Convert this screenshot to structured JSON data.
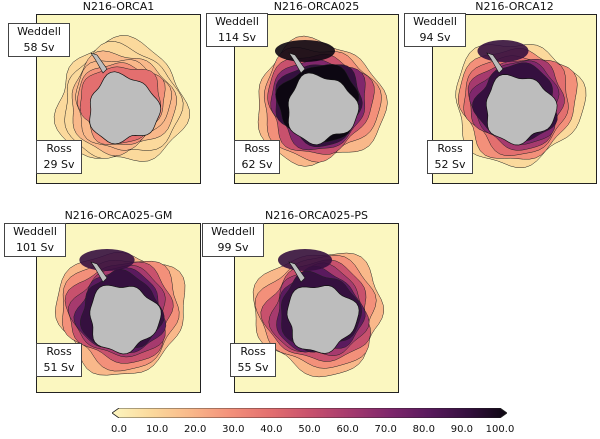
{
  "panels": [
    {
      "id": "orca1",
      "title": "N216-ORCA1",
      "weddell": {
        "name": "Weddell",
        "value": "58 Sv"
      },
      "ross": {
        "name": "Ross",
        "value": "29 Sv"
      },
      "intensity": 0.35
    },
    {
      "id": "orca025",
      "title": "N216-ORCA025",
      "weddell": {
        "name": "Weddell",
        "value": "114 Sv"
      },
      "ross": {
        "name": "Ross",
        "value": "62 Sv"
      },
      "intensity": 1.0
    },
    {
      "id": "orca12",
      "title": "N216-ORCA12",
      "weddell": {
        "name": "Weddell",
        "value": "94 Sv"
      },
      "ross": {
        "name": "Ross",
        "value": "52 Sv"
      },
      "intensity": 0.85
    },
    {
      "id": "orca025gm",
      "title": "N216-ORCA025-GM",
      "weddell": {
        "name": "Weddell",
        "value": "101 Sv"
      },
      "ross": {
        "name": "Ross",
        "value": "51 Sv"
      },
      "intensity": 0.92
    },
    {
      "id": "orca025ps",
      "title": "N216-ORCA025-PS",
      "weddell": {
        "name": "Weddell",
        "value": "99 Sv"
      },
      "ross": {
        "name": "Ross",
        "value": "55 Sv"
      },
      "intensity": 0.9
    }
  ],
  "colorbar": {
    "ticks": [
      "0.0",
      "10.0",
      "20.0",
      "30.0",
      "40.0",
      "50.0",
      "60.0",
      "70.0",
      "80.0",
      "90.0",
      "100.0"
    ],
    "colors": [
      "#fdf6c0",
      "#fbd99c",
      "#f9b88a",
      "#f3907a",
      "#e36f6f",
      "#c8516d",
      "#a63a6e",
      "#80276c",
      "#5a1a5e",
      "#35103f",
      "#0d0712"
    ]
  },
  "colors": {
    "background": "#fbf7c0",
    "land": "#bdbdbd"
  }
}
